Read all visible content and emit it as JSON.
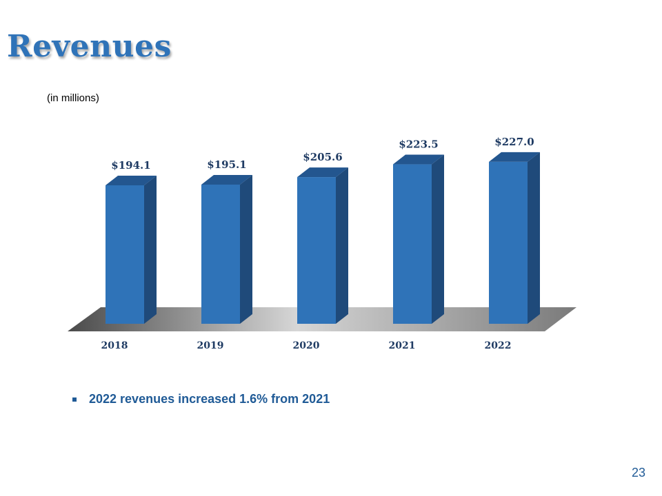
{
  "title": "Revenues",
  "subtitle": "(in millions)",
  "chart_data": {
    "type": "bar",
    "categories": [
      "2018",
      "2019",
      "2020",
      "2021",
      "2022"
    ],
    "values": [
      194.1,
      195.1,
      205.6,
      223.5,
      227.0
    ],
    "data_labels": [
      "$194.1",
      "$195.1",
      "$205.6",
      "$223.5",
      "$227.0"
    ],
    "title": "",
    "xlabel": "",
    "ylabel": "",
    "grid": false,
    "style": "3d-column",
    "colors": {
      "front": "#2f73b8",
      "side": "#1f4a7a",
      "top": "#23568f",
      "floor": "#b3b3b3"
    }
  },
  "bullets": [
    "2022 revenues increased 1.6% from 2021"
  ],
  "page_number": "23"
}
